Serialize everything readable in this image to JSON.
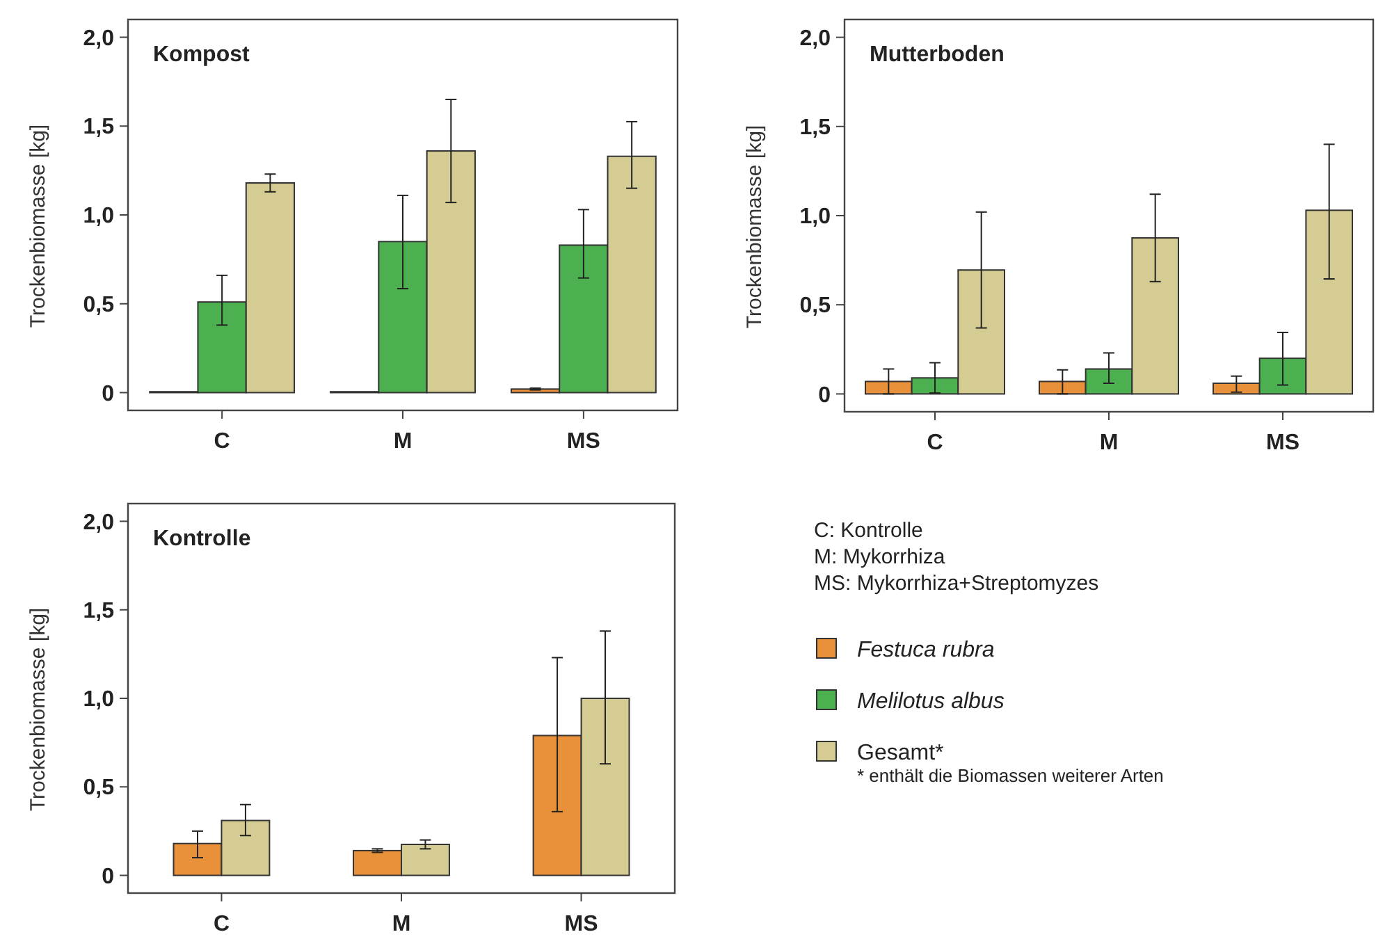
{
  "chart_data": [
    {
      "type": "bar",
      "title": "Kompost",
      "ylabel": "Trockenbiomasse [kg]",
      "categories": [
        "C",
        "M",
        "MS"
      ],
      "ylim": [
        -0.1,
        2.1
      ],
      "yticks": [
        {
          "value": 0,
          "label": "0"
        },
        {
          "value": 0.5,
          "label": "0,5"
        },
        {
          "value": 1,
          "label": "1,0"
        },
        {
          "value": 1.5,
          "label": "1,5"
        },
        {
          "value": 2,
          "label": "2,0"
        }
      ],
      "grid": false,
      "legend": false,
      "series": [
        {
          "color": "#e8903a",
          "values": [
            0.005,
            0.005,
            0.02
          ],
          "errors": [
            null,
            null,
            [
              0.015,
              0.025
            ]
          ]
        },
        {
          "color": "#4cb050",
          "values": [
            0.51,
            0.85,
            0.83
          ],
          "errors": [
            [
              0.38,
              0.66
            ],
            [
              0.585,
              1.11
            ],
            [
              0.645,
              1.03
            ]
          ]
        },
        {
          "color": "#d4cc92",
          "values": [
            1.18,
            1.36,
            1.33
          ],
          "errors": [
            [
              1.13,
              1.23
            ],
            [
              1.07,
              1.65
            ],
            [
              1.15,
              1.525
            ]
          ]
        }
      ]
    },
    {
      "type": "bar",
      "title": "Mutterboden",
      "ylabel": "Trockenbiomasse [kg]",
      "categories": [
        "C",
        "M",
        "MS"
      ],
      "ylim": [
        -0.1,
        2.1
      ],
      "yticks": [
        {
          "value": 0,
          "label": "0"
        },
        {
          "value": 0.5,
          "label": "0,5"
        },
        {
          "value": 1,
          "label": "1,0"
        },
        {
          "value": 1.5,
          "label": "1,5"
        },
        {
          "value": 2,
          "label": "2,0"
        }
      ],
      "grid": false,
      "legend": false,
      "series": [
        {
          "color": "#e8903a",
          "values": [
            0.07,
            0.07,
            0.06
          ],
          "errors": [
            [
              0,
              0.14
            ],
            [
              0,
              0.135
            ],
            [
              0.01,
              0.1
            ]
          ]
        },
        {
          "color": "#4cb050",
          "values": [
            0.09,
            0.14,
            0.2
          ],
          "errors": [
            [
              0.005,
              0.175
            ],
            [
              0.06,
              0.23
            ],
            [
              0.05,
              0.345
            ]
          ]
        },
        {
          "color": "#d4cc92",
          "values": [
            0.695,
            0.875,
            1.03
          ],
          "errors": [
            [
              0.37,
              1.02
            ],
            [
              0.63,
              1.12
            ],
            [
              0.645,
              1.4
            ]
          ]
        }
      ]
    },
    {
      "type": "bar",
      "title": "Kontrolle",
      "ylabel": "Trockenbiomasse [kg]",
      "categories": [
        "C",
        "M",
        "MS"
      ],
      "ylim": [
        -0.1,
        2.1
      ],
      "yticks": [
        {
          "value": 0,
          "label": "0"
        },
        {
          "value": 0.5,
          "label": "0,5"
        },
        {
          "value": 1,
          "label": "1,0"
        },
        {
          "value": 1.5,
          "label": "1,5"
        },
        {
          "value": 2,
          "label": "2,0"
        }
      ],
      "grid": false,
      "legend": "right",
      "annotations": [
        "C: Kontrolle",
        "M: Mykorrhiza",
        "MS: Mykorrhiza+Streptomyzes",
        "* enthält die Biomassen weiterer Arten"
      ],
      "series": [
        {
          "name": "Festuca rubra",
          "color": "#e8903a",
          "values": [
            0.18,
            0.14,
            0.79
          ],
          "errors": [
            [
              0.1,
              0.25
            ],
            [
              0.13,
              0.15
            ],
            [
              0.36,
              1.23
            ]
          ]
        },
        {
          "name": "Melilotus albus",
          "color": "#4cb050",
          "values": [
            null,
            null,
            null
          ]
        },
        {
          "name": "Gesamt*",
          "color": "#d4cc92",
          "values": [
            0.31,
            0.175,
            1.0
          ],
          "errors": [
            [
              0.225,
              0.4
            ],
            [
              0.15,
              0.2
            ],
            [
              0.63,
              1.38
            ]
          ]
        }
      ]
    }
  ]
}
